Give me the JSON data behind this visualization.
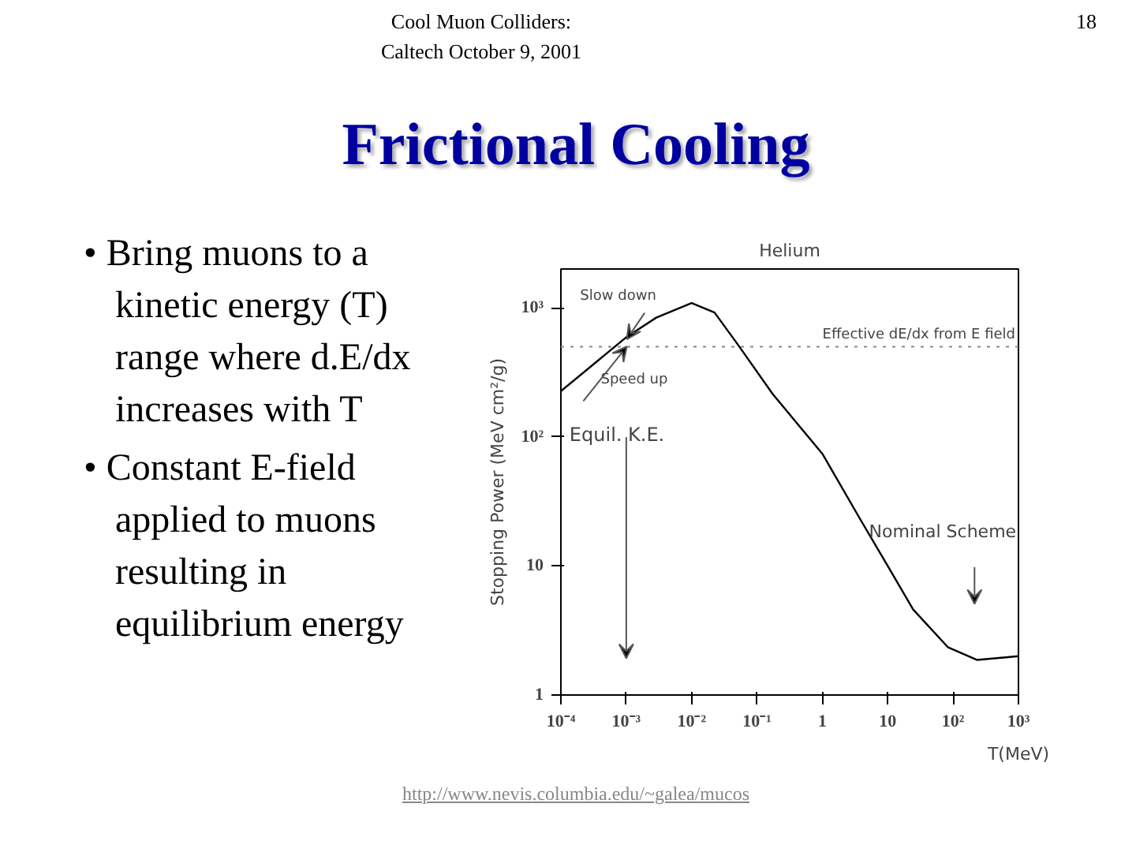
{
  "chart_data": {
    "type": "line",
    "title": "Frictional Cooling",
    "subtitle": "Helium",
    "xlabel": "T(MeV)",
    "ylabel": "Stopping Power (MeV cm²/g)",
    "log": "xy",
    "grid": false,
    "marker": "none",
    "line_style": "solid",
    "x": [
      0.0001,
      0.00102,
      0.00288,
      0.01,
      0.0224,
      0.0513,
      0.174,
      1.0,
      3.8,
      10.0,
      24.5,
      83,
      234,
      1000
    ],
    "series": [
      {
        "color": "#000000",
        "values": [
          226,
          597,
          840,
          1090,
          920,
          517,
          215,
          74,
          23,
          10,
          4.6,
          2.35,
          1.87,
          2.0
        ]
      }
    ],
    "xlim": [
      0.0001,
      1000
    ],
    "ylim": [
      1,
      2000
    ],
    "xticks": [
      {
        "value": 0.0001,
        "label": "10⁻⁴"
      },
      {
        "value": 0.001,
        "label": "10⁻³"
      },
      {
        "value": 0.01,
        "label": "10⁻²"
      },
      {
        "value": 0.1,
        "label": "10⁻¹"
      },
      1,
      10,
      {
        "value": 100,
        "label": "10²"
      },
      {
        "value": 1000,
        "label": "10³"
      }
    ],
    "yticks": [
      1,
      10,
      {
        "value": 100,
        "label": "10²"
      },
      {
        "value": 1000,
        "label": "10³"
      }
    ],
    "ref_lines": [
      {
        "axis": "y",
        "value": 500,
        "label": "Effective dE/dx from E field",
        "color": "#888888",
        "line_style": "dotted"
      }
    ],
    "annotations": [
      "Cool Muon Colliders:",
      "Caltech October 9, 2001",
      "18",
      "• Bring muons to a kinetic energy (T) range where d.E/dx increases with T",
      "• Constant E-field applied to muons resulting in equilibrium energy",
      "http://www.nevis.columbia.edu/~galea/mucos",
      "Slow down",
      "Speed up",
      {
        "text": "Equil. K.E.",
        "x": 0.001,
        "y": 500
      },
      "Nominal Scheme"
    ]
  }
}
